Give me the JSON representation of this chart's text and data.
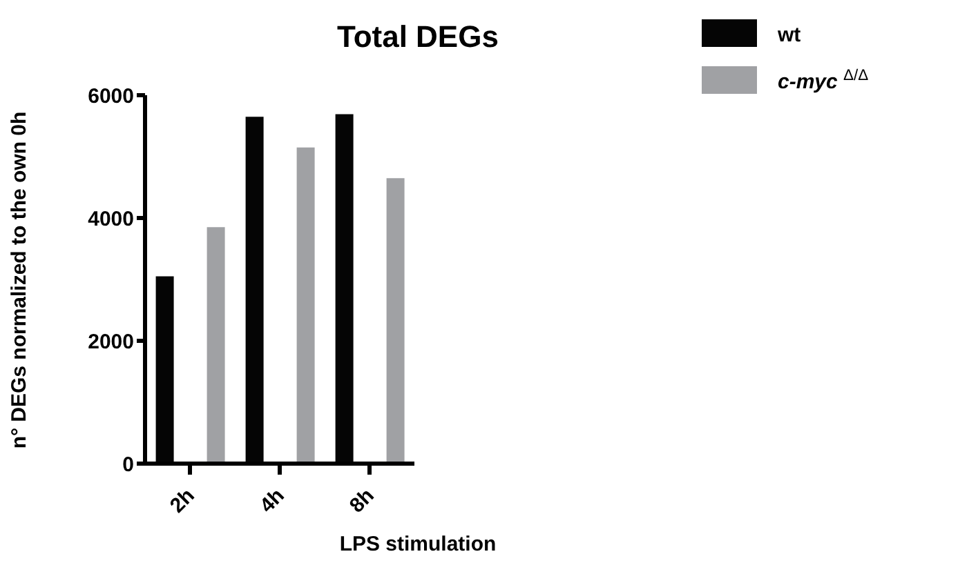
{
  "chart_data": {
    "type": "bar",
    "title": "Total DEGs",
    "xlabel": "LPS stimulation",
    "ylabel": "n° DEGs  normalized to the own 0h",
    "categories": [
      "2h",
      "4h",
      "8h"
    ],
    "series": [
      {
        "name": "wt",
        "color": "#050505",
        "values": [
          3050,
          5650,
          5690
        ]
      },
      {
        "name": "c-myc $^{Δ/Δ}$",
        "color": "#a0a1a4",
        "values": [
          3850,
          5150,
          4650
        ]
      }
    ],
    "ylim": [
      0,
      6000
    ],
    "yticks": [
      0,
      2000,
      4000,
      6000
    ],
    "legend": "top right"
  }
}
